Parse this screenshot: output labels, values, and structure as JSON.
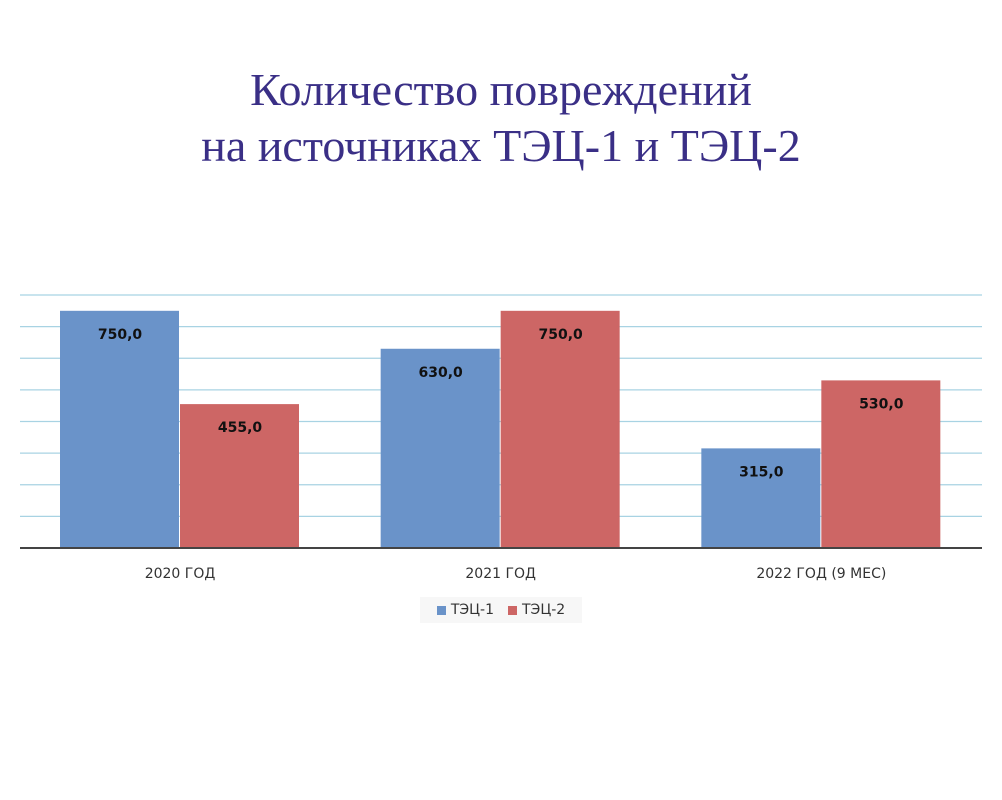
{
  "title_line1": "Количество повреждений",
  "title_line2": "на источниках ТЭЦ-1 и ТЭЦ-2",
  "chart_data": {
    "type": "bar",
    "categories": [
      "2020 ГОД",
      "2021 ГОД",
      "2022 ГОД (9 МЕС)"
    ],
    "series": [
      {
        "name": "ТЭЦ-1",
        "color": "#6a93c9",
        "values": [
          750.0,
          630.0,
          315.0
        ],
        "labels": [
          "750,0",
          "630,0",
          "315,0"
        ]
      },
      {
        "name": "ТЭЦ-2",
        "color": "#cd6665",
        "values": [
          455.0,
          750.0,
          530.0
        ],
        "labels": [
          "455,0",
          "750,0",
          "530,0"
        ]
      }
    ],
    "ylim": [
      0,
      800
    ],
    "grid": true,
    "gridline_color": "#a8d3e3",
    "legend_position": "bottom"
  }
}
